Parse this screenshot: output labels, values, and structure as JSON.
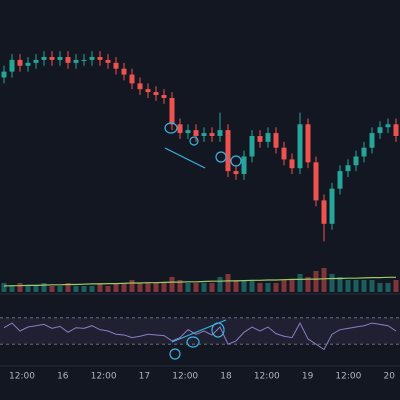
{
  "chart_data": {
    "type": "candlestick",
    "open": [
      74,
      76,
      80,
      78,
      79,
      80,
      81,
      80,
      81,
      79,
      80,
      80,
      81,
      80,
      79,
      77,
      75,
      72,
      70,
      69,
      68,
      67,
      58,
      55,
      56,
      54,
      55,
      54,
      56,
      42,
      41,
      47,
      54,
      52,
      55,
      50,
      46,
      43,
      58,
      45,
      32,
      24,
      36,
      42,
      44,
      47,
      50,
      55,
      57,
      58
    ],
    "high": [
      78,
      82,
      82,
      81,
      82,
      83,
      83,
      83,
      83,
      82,
      82,
      83,
      83,
      82,
      81,
      79,
      77,
      74,
      72,
      71,
      70,
      69,
      60,
      58,
      58,
      57,
      57,
      62,
      58,
      44,
      49,
      56,
      56,
      57,
      57,
      52,
      48,
      62,
      60,
      47,
      34,
      38,
      44,
      46,
      49,
      52,
      57,
      59,
      60,
      60
    ],
    "low": [
      72,
      74,
      76,
      76,
      77,
      78,
      78,
      78,
      77,
      77,
      78,
      78,
      78,
      77,
      75,
      73,
      70,
      68,
      67,
      66,
      65,
      56,
      53,
      53,
      52,
      52,
      52,
      52,
      40,
      39,
      39,
      45,
      50,
      50,
      48,
      44,
      41,
      41,
      43,
      30,
      18,
      22,
      34,
      40,
      42,
      45,
      48,
      53,
      55,
      52
    ],
    "close": [
      76,
      80,
      78,
      79,
      80,
      81,
      80,
      81,
      79,
      80,
      80,
      81,
      80,
      79,
      77,
      75,
      72,
      70,
      69,
      68,
      67,
      58,
      55,
      56,
      54,
      55,
      54,
      56,
      42,
      41,
      47,
      54,
      52,
      55,
      50,
      46,
      43,
      58,
      45,
      32,
      24,
      36,
      42,
      44,
      47,
      50,
      55,
      57,
      58,
      54
    ],
    "ylim": [
      0,
      100
    ],
    "up_color": "#26a69a",
    "down_color": "#ef5350",
    "volume": [
      3,
      2,
      3,
      2,
      2,
      3,
      2,
      2,
      3,
      2,
      2,
      2,
      3,
      2,
      3,
      3,
      4,
      3,
      3,
      3,
      3,
      5,
      4,
      3,
      3,
      3,
      3,
      5,
      6,
      4,
      4,
      4,
      3,
      3,
      3,
      4,
      4,
      6,
      5,
      7,
      8,
      6,
      5,
      4,
      4,
      4,
      4,
      3,
      3,
      4
    ],
    "volume_ma": [
      2,
      2.1,
      2.1,
      2.2,
      2.2,
      2.3,
      2.4,
      2.4,
      2.5,
      2.5,
      2.6,
      2.7,
      2.7,
      2.8,
      2.8,
      2.9,
      3,
      3,
      3.1,
      3.1,
      3.2,
      3.3,
      3.3,
      3.4,
      3.4,
      3.5,
      3.6,
      3.6,
      3.7,
      3.7,
      3.8,
      3.9,
      3.9,
      4,
      4,
      4.1,
      4.2,
      4.2,
      4.3,
      4.3,
      4.4,
      4.5,
      4.5,
      4.6,
      4.6,
      4.7,
      4.8,
      4.8,
      4.9,
      4.9
    ],
    "volume_ylim": [
      0,
      10
    ],
    "volume_ma_color": "#9ccc65",
    "rsi": [
      55,
      62,
      50,
      56,
      58,
      60,
      54,
      57,
      48,
      55,
      54,
      58,
      52,
      50,
      45,
      44,
      40,
      42,
      45,
      44,
      43,
      35,
      40,
      52,
      45,
      50,
      44,
      56,
      30,
      35,
      48,
      56,
      50,
      56,
      46,
      42,
      40,
      62,
      38,
      30,
      22,
      45,
      52,
      54,
      56,
      58,
      62,
      60,
      58,
      50
    ],
    "rsi_ylim": [
      0,
      100
    ],
    "rsi_levels": [
      30,
      70
    ],
    "rsi_color": "#8e7cc3",
    "x_labels": [
      "12:00",
      "16",
      "12:00",
      "17",
      "12:00",
      "18",
      "12:00",
      "19",
      "12:00",
      "20"
    ]
  }
}
